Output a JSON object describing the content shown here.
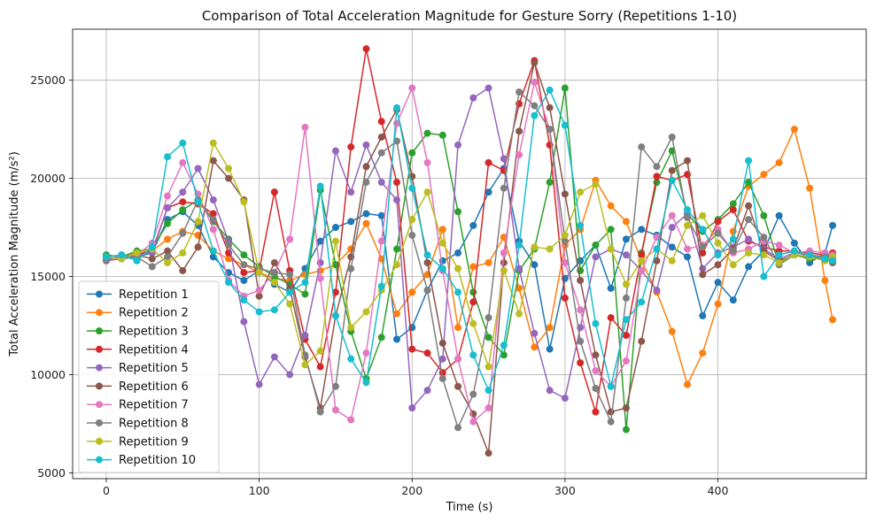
{
  "chart_data": {
    "type": "line",
    "title": "Comparison of Total Acceleration Magnitude for Gesture Sorry (Repetitions 1-10)",
    "xlabel": "Time (s)",
    "ylabel": "Total Acceleration Magnitude (m/s²)",
    "xlim": [
      -22,
      497
    ],
    "ylim": [
      4700,
      27600
    ],
    "xticks": [
      0,
      100,
      200,
      300,
      400
    ],
    "yticks": [
      5000,
      10000,
      15000,
      20000,
      25000
    ],
    "grid": true,
    "legend_position": "lower-left",
    "markers": "circle",
    "series": [
      {
        "name": "Repetition 1",
        "color": "#1f77b4",
        "x": [
          0,
          10,
          20,
          30,
          40,
          50,
          60,
          70,
          80,
          90,
          100,
          110,
          120,
          130,
          140,
          150,
          160,
          170,
          180,
          190,
          200,
          210,
          220,
          230,
          240,
          250,
          260,
          270,
          280,
          290,
          300,
          310,
          320,
          330,
          340,
          350,
          360,
          370,
          380,
          390,
          400,
          410,
          420,
          430,
          440,
          450,
          460,
          470,
          475
        ],
        "y": [
          16000,
          15900,
          16000,
          16200,
          17900,
          18300,
          17600,
          16000,
          15200,
          14800,
          15300,
          14600,
          14200,
          15400,
          16800,
          17500,
          17800,
          18200,
          18100,
          11800,
          12400,
          14300,
          15800,
          16200,
          17600,
          19300,
          20500,
          16800,
          15600,
          11300,
          14900,
          15800,
          16600,
          14400,
          16900,
          17400,
          17100,
          16500,
          16000,
          13000,
          14700,
          13800,
          15500,
          16300,
          18100,
          16700,
          15700,
          16200,
          17600
        ]
      },
      {
        "name": "Repetition 2",
        "color": "#ff7f0e",
        "x": [
          0,
          10,
          20,
          30,
          40,
          50,
          60,
          70,
          80,
          90,
          100,
          110,
          120,
          130,
          140,
          150,
          160,
          170,
          180,
          190,
          200,
          210,
          220,
          230,
          240,
          250,
          260,
          270,
          280,
          290,
          300,
          310,
          320,
          330,
          340,
          350,
          360,
          370,
          380,
          390,
          400,
          410,
          420,
          430,
          440,
          450,
          460,
          470,
          475
        ],
        "y": [
          15900,
          16000,
          16200,
          16300,
          16900,
          17300,
          17100,
          16300,
          15900,
          15600,
          15200,
          14900,
          14800,
          15100,
          15300,
          15600,
          16400,
          17700,
          15900,
          13100,
          14200,
          15100,
          17400,
          12400,
          15500,
          15700,
          17000,
          14400,
          11400,
          12400,
          16600,
          17400,
          19900,
          18600,
          17800,
          15800,
          14200,
          12200,
          9500,
          11100,
          13600,
          17300,
          19600,
          20200,
          20800,
          22500,
          19500,
          14800,
          12800
        ]
      },
      {
        "name": "Repetition 3",
        "color": "#2ca02c",
        "x": [
          0,
          10,
          20,
          30,
          40,
          50,
          60,
          70,
          80,
          90,
          100,
          110,
          120,
          130,
          140,
          150,
          160,
          170,
          180,
          190,
          200,
          210,
          220,
          230,
          240,
          250,
          260,
          270,
          280,
          290,
          300,
          310,
          320,
          330,
          340,
          350,
          360,
          370,
          380,
          390,
          400,
          410,
          420,
          430,
          440,
          450,
          460,
          470,
          475
        ],
        "y": [
          16100,
          16000,
          16300,
          16400,
          17700,
          18400,
          18900,
          17800,
          16900,
          16100,
          15500,
          15000,
          14600,
          14100,
          19400,
          15600,
          12200,
          9800,
          11900,
          16400,
          21300,
          22300,
          22200,
          18300,
          14200,
          11900,
          11000,
          15300,
          16400,
          19800,
          24600,
          15300,
          16600,
          17400,
          7200,
          16200,
          19800,
          21400,
          18200,
          17300,
          17900,
          18700,
          19800,
          18100,
          15600,
          16100,
          15900,
          16000,
          16100
        ]
      },
      {
        "name": "Repetition 4",
        "color": "#d62728",
        "x": [
          0,
          10,
          20,
          30,
          40,
          50,
          60,
          70,
          80,
          90,
          100,
          110,
          120,
          130,
          140,
          150,
          160,
          170,
          180,
          190,
          200,
          210,
          220,
          230,
          240,
          250,
          260,
          270,
          280,
          290,
          300,
          310,
          320,
          330,
          340,
          350,
          360,
          370,
          380,
          390,
          400,
          410,
          420,
          430,
          440,
          450,
          460,
          470,
          475
        ],
        "y": [
          16000,
          15900,
          16100,
          16300,
          18500,
          18800,
          18700,
          18200,
          16200,
          15200,
          15300,
          19300,
          15300,
          11800,
          10400,
          14200,
          21600,
          26600,
          22900,
          19800,
          11300,
          11100,
          10100,
          10800,
          13700,
          20800,
          20400,
          23800,
          26000,
          21700,
          13900,
          10600,
          8100,
          12900,
          12000,
          16100,
          20100,
          19900,
          20200,
          16200,
          17800,
          18400,
          16800,
          16500,
          16300,
          16300,
          16200,
          16100,
          16200
        ]
      },
      {
        "name": "Repetition 5",
        "color": "#9467bd",
        "x": [
          0,
          10,
          20,
          30,
          40,
          50,
          60,
          70,
          80,
          90,
          100,
          110,
          120,
          130,
          140,
          150,
          160,
          170,
          180,
          190,
          200,
          210,
          220,
          230,
          240,
          250,
          260,
          270,
          280,
          290,
          300,
          310,
          320,
          330,
          340,
          350,
          360,
          370,
          380,
          390,
          400,
          410,
          420,
          430,
          440,
          450,
          460,
          470,
          475
        ],
        "y": [
          15800,
          15900,
          16100,
          16200,
          18500,
          19300,
          20500,
          18900,
          16800,
          12700,
          9500,
          10900,
          10000,
          12000,
          15700,
          21400,
          19300,
          21700,
          19800,
          18900,
          8300,
          9200,
          10800,
          21700,
          24100,
          24600,
          21000,
          15400,
          12100,
          9200,
          8800,
          12400,
          16000,
          16400,
          16100,
          15300,
          14300,
          17500,
          18200,
          15400,
          16200,
          16500,
          16900,
          16400,
          15900,
          16200,
          16100,
          16000,
          15900
        ]
      },
      {
        "name": "Repetition 6",
        "color": "#8c564b",
        "x": [
          0,
          10,
          20,
          30,
          40,
          50,
          60,
          70,
          80,
          90,
          100,
          110,
          120,
          130,
          140,
          150,
          160,
          170,
          180,
          190,
          200,
          210,
          220,
          230,
          240,
          250,
          260,
          270,
          280,
          290,
          300,
          310,
          320,
          330,
          340,
          350,
          360,
          370,
          380,
          390,
          400,
          410,
          420,
          430,
          440,
          450,
          460,
          470,
          475
        ],
        "y": [
          15900,
          16000,
          16100,
          15900,
          16300,
          15300,
          16500,
          20900,
          20000,
          18900,
          14000,
          15700,
          14400,
          10900,
          8300,
          13000,
          16000,
          20600,
          22100,
          23500,
          20100,
          15700,
          11600,
          9400,
          8000,
          6000,
          15700,
          22400,
          25900,
          23600,
          19200,
          14800,
          11000,
          8100,
          8300,
          11700,
          15800,
          20400,
          20900,
          15100,
          15600,
          16400,
          18600,
          16300,
          15800,
          16100,
          16000,
          15900,
          15700
        ]
      },
      {
        "name": "Repetition 7",
        "color": "#e377c2",
        "x": [
          0,
          10,
          20,
          30,
          40,
          50,
          60,
          70,
          80,
          90,
          100,
          110,
          120,
          130,
          140,
          150,
          160,
          170,
          180,
          190,
          200,
          210,
          220,
          230,
          240,
          250,
          260,
          270,
          280,
          290,
          300,
          310,
          320,
          330,
          340,
          350,
          360,
          370,
          380,
          390,
          400,
          410,
          420,
          430,
          440,
          450,
          460,
          470,
          475
        ],
        "y": [
          15800,
          16000,
          16100,
          16700,
          19100,
          20800,
          19200,
          17400,
          14800,
          14000,
          14300,
          15200,
          16900,
          22600,
          14900,
          8200,
          7700,
          11100,
          16800,
          22800,
          24600,
          20800,
          15300,
          10800,
          7600,
          8300,
          16200,
          21200,
          24900,
          22500,
          15700,
          13300,
          10200,
          9400,
          10700,
          15300,
          17000,
          18100,
          16400,
          16600,
          17400,
          16200,
          16400,
          16800,
          16600,
          16200,
          16300,
          16200,
          16100
        ]
      },
      {
        "name": "Repetition 8",
        "color": "#7f7f7f",
        "x": [
          0,
          10,
          20,
          30,
          40,
          50,
          60,
          70,
          80,
          90,
          100,
          110,
          120,
          130,
          140,
          150,
          160,
          170,
          180,
          190,
          200,
          210,
          220,
          230,
          240,
          250,
          260,
          270,
          280,
          290,
          300,
          310,
          320,
          330,
          340,
          350,
          360,
          370,
          380,
          390,
          400,
          410,
          420,
          430,
          440,
          450,
          460,
          470,
          475
        ],
        "y": [
          15800,
          16100,
          16000,
          15500,
          16000,
          17200,
          18900,
          17900,
          16600,
          15600,
          15400,
          15200,
          15100,
          11000,
          8100,
          9400,
          15400,
          19800,
          21300,
          21900,
          17100,
          14300,
          9800,
          7300,
          9000,
          12900,
          19500,
          24400,
          23700,
          22500,
          16800,
          11700,
          9300,
          7600,
          13900,
          21600,
          20600,
          22100,
          18000,
          16500,
          17200,
          16300,
          17900,
          17000,
          15600,
          16200,
          16100,
          16000,
          16000
        ]
      },
      {
        "name": "Repetition 9",
        "color": "#bcbd22",
        "x": [
          0,
          10,
          20,
          30,
          40,
          50,
          60,
          70,
          80,
          90,
          100,
          110,
          120,
          130,
          140,
          150,
          160,
          170,
          180,
          190,
          200,
          210,
          220,
          230,
          240,
          250,
          260,
          270,
          280,
          290,
          300,
          310,
          320,
          330,
          340,
          350,
          360,
          370,
          380,
          390,
          400,
          410,
          420,
          430,
          440,
          450,
          460,
          470,
          475
        ],
        "y": [
          16000,
          15900,
          16200,
          16400,
          15700,
          16200,
          17800,
          21800,
          20500,
          18800,
          15200,
          14700,
          13600,
          10500,
          11200,
          16800,
          12400,
          13200,
          14300,
          15600,
          17900,
          19300,
          16700,
          15400,
          12600,
          10400,
          15300,
          13100,
          16500,
          16400,
          17100,
          19300,
          19700,
          16400,
          14600,
          15800,
          16400,
          15800,
          17600,
          18100,
          16700,
          15600,
          16200,
          16100,
          15700,
          16100,
          16000,
          15800,
          16000
        ]
      },
      {
        "name": "Repetition 10",
        "color": "#17becf",
        "x": [
          0,
          10,
          20,
          30,
          40,
          50,
          60,
          70,
          80,
          90,
          100,
          110,
          120,
          130,
          140,
          150,
          160,
          170,
          180,
          190,
          200,
          210,
          220,
          230,
          240,
          250,
          260,
          270,
          280,
          290,
          300,
          310,
          320,
          330,
          340,
          350,
          360,
          370,
          380,
          390,
          400,
          410,
          420,
          430,
          440,
          450,
          460,
          470,
          475
        ],
        "y": [
          16000,
          16100,
          15800,
          16500,
          21100,
          21800,
          18800,
          16300,
          14700,
          13800,
          13200,
          13300,
          14200,
          14700,
          19600,
          13000,
          10800,
          9600,
          14500,
          23600,
          19500,
          16100,
          15400,
          14200,
          11000,
          9200,
          11500,
          16600,
          23200,
          24500,
          22700,
          17600,
          12600,
          9400,
          12800,
          13700,
          16400,
          19900,
          18400,
          17400,
          16100,
          16900,
          20900,
          15000,
          16100,
          16300,
          16100,
          15900,
          15800
        ]
      }
    ]
  }
}
